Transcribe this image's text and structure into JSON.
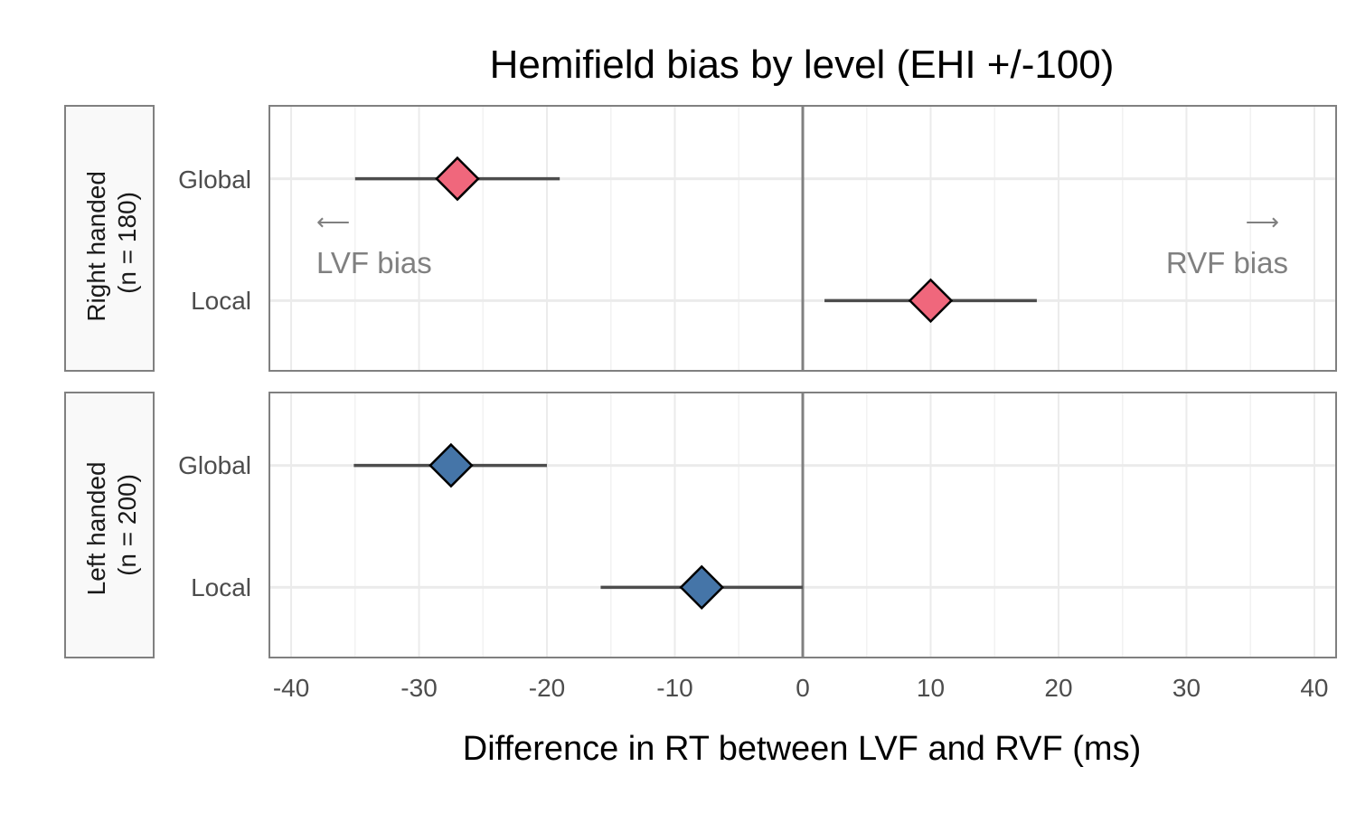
{
  "chart_data": {
    "type": "scatter",
    "title": "Hemifield bias by level (EHI +/-100)",
    "xlabel": "Difference in RT between LVF and RVF (ms)",
    "xlim": [
      -41.7,
      41.7
    ],
    "xticks": [
      -40,
      -30,
      -20,
      -10,
      0,
      10,
      20,
      30,
      40
    ],
    "xtick_labels": [
      "-40",
      "-30",
      "-20",
      "-10",
      "0",
      "10",
      "20",
      "30",
      "40"
    ],
    "categories": [
      "Global",
      "Local"
    ],
    "grid": true,
    "reference_line_x": 0,
    "panels": [
      {
        "name_line1": "Right handed",
        "name_line2": "(n = 180)",
        "color": "#F0677C",
        "points": [
          {
            "category": "Global",
            "x": -27.0,
            "xmin": -35.0,
            "xmax": -19.0
          },
          {
            "category": "Local",
            "x": 10.0,
            "xmin": 1.7,
            "xmax": 18.3
          }
        ],
        "annotations": {
          "left_arrow": "⟵",
          "left_label": "LVF bias",
          "right_arrow": "⟶",
          "right_label": "RVF bias"
        }
      },
      {
        "name_line1": "Left handed",
        "name_line2": "(n = 200)",
        "color": "#4575A8",
        "points": [
          {
            "category": "Global",
            "x": -27.5,
            "xmin": -35.1,
            "xmax": -20.0
          },
          {
            "category": "Local",
            "x": -7.9,
            "xmin": -15.8,
            "xmax": 0.0
          }
        ]
      }
    ]
  }
}
